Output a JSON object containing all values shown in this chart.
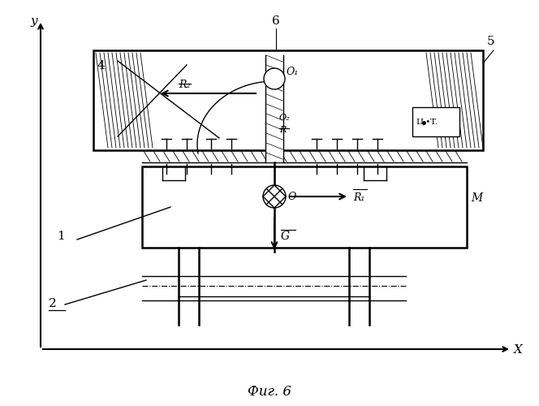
{
  "title": "Фиг. 6",
  "bg_color": "#ffffff",
  "line_color": "#000000",
  "figsize": [
    6.64,
    5.0
  ],
  "dpi": 100,
  "labels": {
    "y_axis": "y",
    "x_axis": "X",
    "label1": "1",
    "label2": "2",
    "label4": "4",
    "label5": "5",
    "label6": "6",
    "labelO": "O",
    "labelO1": "O₁",
    "labelO2": "O₂",
    "labelR1": "R₁",
    "labelR2": "R₂",
    "labelR": "R",
    "labelG": "G",
    "labelM": "M",
    "labelCT": "Ц.•T."
  }
}
